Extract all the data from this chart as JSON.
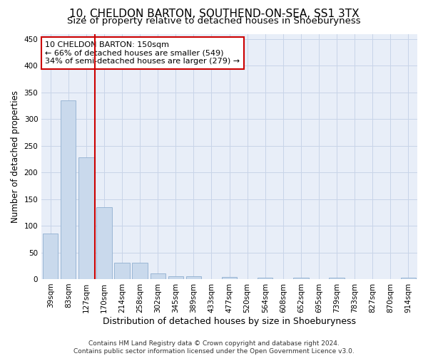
{
  "title": "10, CHELDON BARTON, SOUTHEND-ON-SEA, SS1 3TX",
  "subtitle": "Size of property relative to detached houses in Shoeburyness",
  "xlabel": "Distribution of detached houses by size in Shoeburyness",
  "ylabel": "Number of detached properties",
  "categories": [
    "39sqm",
    "83sqm",
    "127sqm",
    "170sqm",
    "214sqm",
    "258sqm",
    "302sqm",
    "345sqm",
    "389sqm",
    "433sqm",
    "477sqm",
    "520sqm",
    "564sqm",
    "608sqm",
    "652sqm",
    "695sqm",
    "739sqm",
    "783sqm",
    "827sqm",
    "870sqm",
    "914sqm"
  ],
  "values": [
    85,
    335,
    228,
    135,
    30,
    30,
    10,
    5,
    5,
    0,
    4,
    0,
    3,
    0,
    3,
    0,
    2,
    0,
    0,
    0,
    3
  ],
  "bar_color": "#c9d9ec",
  "bar_edge_color": "#90afd0",
  "grid_color": "#c8d4e8",
  "background_color": "#e8eef8",
  "vline_color": "#cc0000",
  "annotation_text": "10 CHELDON BARTON: 150sqm\n← 66% of detached houses are smaller (549)\n34% of semi-detached houses are larger (279) →",
  "annotation_box_color": "white",
  "annotation_box_edge": "#cc0000",
  "ylim": [
    0,
    460
  ],
  "yticks": [
    0,
    50,
    100,
    150,
    200,
    250,
    300,
    350,
    400,
    450
  ],
  "title_fontsize": 11,
  "subtitle_fontsize": 9.5,
  "xlabel_fontsize": 9,
  "ylabel_fontsize": 8.5,
  "tick_fontsize": 7.5,
  "annotation_fontsize": 8,
  "footer_fontsize": 6.5,
  "footer": "Contains HM Land Registry data © Crown copyright and database right 2024.\nContains public sector information licensed under the Open Government Licence v3.0."
}
